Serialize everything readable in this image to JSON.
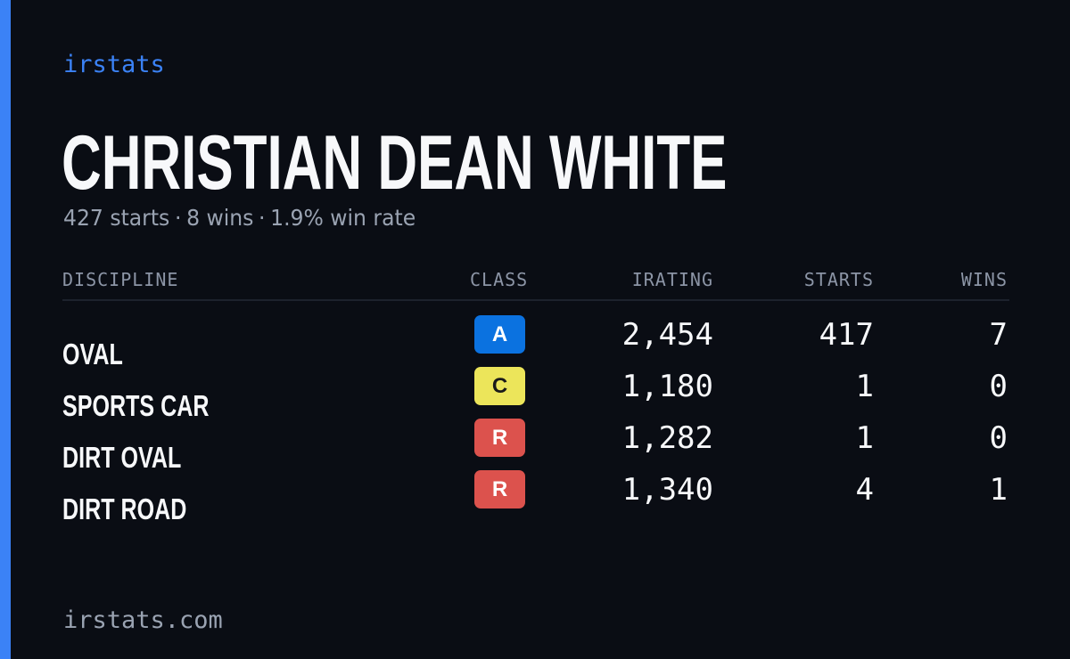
{
  "colors": {
    "accent": "#3b82f6",
    "background": "#0a0d14",
    "muted": "#9aa3b2",
    "header": "#8c95a6",
    "text": "#f7f8fa"
  },
  "brand": "irstats",
  "driver": {
    "name": "CHRISTIAN DEAN WHITE",
    "starts": "427 starts",
    "wins": "8 wins",
    "win_rate": "1.9% win rate",
    "separator": "·"
  },
  "table": {
    "headers": {
      "discipline": "DISCIPLINE",
      "class": "CLASS",
      "irating": "IRATING",
      "starts": "STARTS",
      "wins": "WINS"
    },
    "rows": [
      {
        "discipline": "OVAL",
        "class": "A",
        "class_color": "#0b72e0",
        "class_text_color": "#ffffff",
        "irating": "2,454",
        "starts": "417",
        "wins": "7"
      },
      {
        "discipline": "SPORTS CAR",
        "class": "C",
        "class_color": "#ece55a",
        "class_text_color": "#1a1a1a",
        "irating": "1,180",
        "starts": "1",
        "wins": "0"
      },
      {
        "discipline": "DIRT OVAL",
        "class": "R",
        "class_color": "#dc524d",
        "class_text_color": "#ffffff",
        "irating": "1,282",
        "starts": "1",
        "wins": "0"
      },
      {
        "discipline": "DIRT ROAD",
        "class": "R",
        "class_color": "#dc524d",
        "class_text_color": "#ffffff",
        "irating": "1,340",
        "starts": "4",
        "wins": "1"
      }
    ]
  },
  "footer": {
    "url": "irstats.com"
  }
}
